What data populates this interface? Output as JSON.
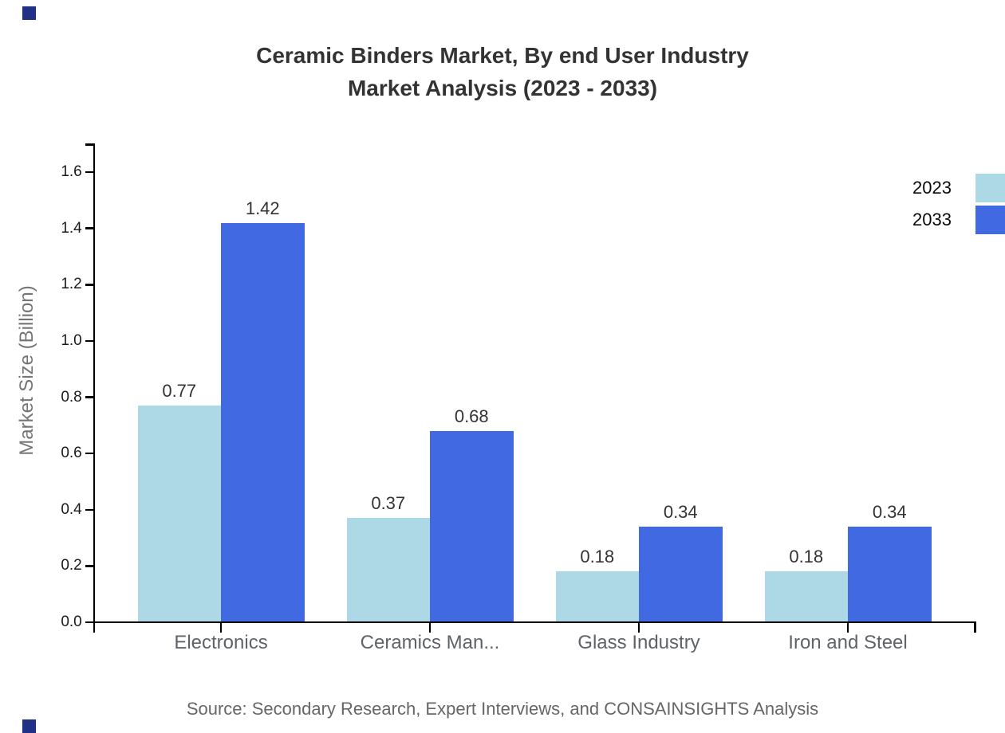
{
  "title": {
    "line1": "Ceramic Binders Market, By end User Industry",
    "line2": "Market Analysis (2023 - 2033)"
  },
  "source": "Source: Secondary Research, Expert Interviews, and CONSAINSIGHTS Analysis",
  "chart_data": {
    "type": "bar",
    "title": "Ceramic Binders Market, By end User Industry Market Analysis (2023 - 2033)",
    "categories": [
      "Electronics",
      "Ceramics Man...",
      "Glass Industry",
      "Iron and Steel"
    ],
    "series": [
      {
        "name": "2023",
        "color": "#ADD8E6",
        "values": [
          0.77,
          0.37,
          0.18,
          0.18
        ]
      },
      {
        "name": "2033",
        "color": "#4169E1",
        "values": [
          1.42,
          0.68,
          0.34,
          0.34
        ]
      }
    ],
    "xlabel": "",
    "ylabel": "Market Size (Billion)",
    "ylim": [
      0,
      1.6
    ],
    "ytick_step": 0.2,
    "yticks": [
      "0.0",
      "0.2",
      "0.4",
      "0.6",
      "0.8",
      "1.0",
      "1.2",
      "1.4",
      "1.6"
    ],
    "grid": false,
    "legend_position": "top-right",
    "value_labels": true
  },
  "colors": {
    "axis": "#000000",
    "title_text": "#333333",
    "ytick_label": "#1a1a1a",
    "category_label": "#5f6368",
    "value_label": "#333333",
    "axis_title": "#757575",
    "source_text": "#666666",
    "legend_text": "#0a0a0a",
    "corner_mark": "#203087",
    "series_2023": "#ADD8E6",
    "series_2033": "#4169E1"
  }
}
